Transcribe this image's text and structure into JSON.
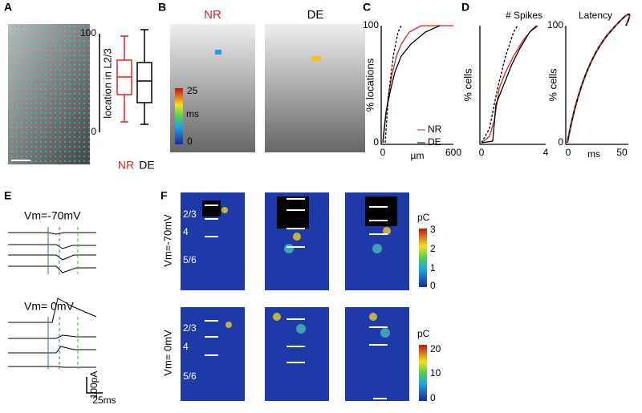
{
  "panels": {
    "A": {
      "label": "A",
      "axis_label": "location in L2/3",
      "yticks": [
        100,
        0
      ],
      "groups": [
        "NR",
        "DE"
      ]
    },
    "B": {
      "label": "B",
      "titles": [
        "NR",
        "DE"
      ],
      "colorbar_ticks": [
        25,
        0
      ],
      "colorbar_unit": "ms"
    },
    "C": {
      "label": "C",
      "ylabel": "% locations",
      "xlabel": "µm",
      "yticks": [
        100,
        0
      ],
      "xticks": [
        0,
        600
      ],
      "legend": [
        "NR",
        "DE"
      ]
    },
    "D": {
      "label": "D",
      "titles": [
        "# Spikes",
        "Latency"
      ],
      "ylabels": [
        "% cells",
        "% cells"
      ],
      "yticks": [
        100,
        0
      ],
      "xticks_spikes": [
        0,
        4
      ],
      "xticks_latency": [
        0,
        50
      ],
      "xlabel_latency": "ms"
    },
    "E": {
      "label": "E",
      "conditions": [
        "Vm=-70mV",
        "Vm= 0mV"
      ],
      "scale_y": "100pA",
      "scale_x": "25ms"
    },
    "F": {
      "label": "F",
      "rows": [
        "Vm=-70mV",
        "Vm= 0mV"
      ],
      "layers": [
        "2/3",
        "4",
        "5/6"
      ],
      "colorbar_unit": "pC",
      "colorbar1_ticks": [
        3,
        2,
        1,
        0
      ],
      "colorbar2_ticks": [
        20,
        10,
        0
      ]
    }
  }
}
